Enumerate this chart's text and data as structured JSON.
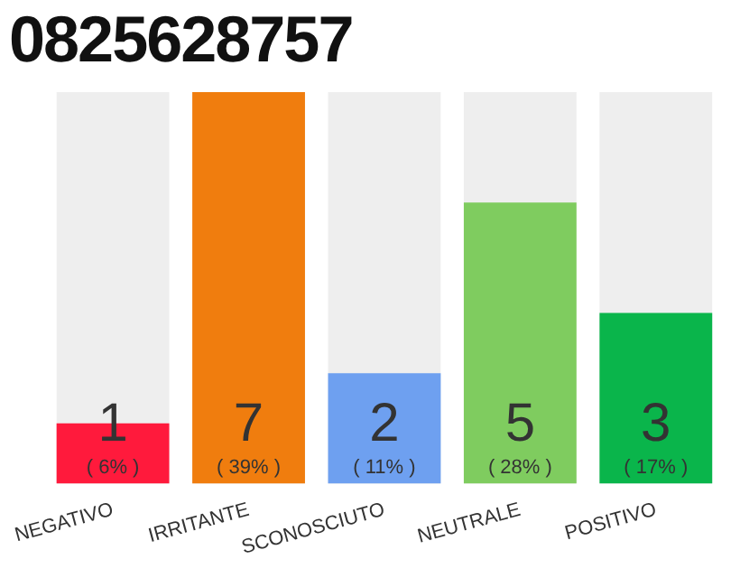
{
  "chart_data": {
    "type": "bar",
    "title": "0825628757",
    "categories": [
      "NEGATIVO",
      "IRRITANTE",
      "SCONOSCIUTO",
      "NEUTRALE",
      "POSITIVO"
    ],
    "values": [
      6,
      39,
      11,
      28,
      17
    ],
    "colors": [
      "#ff1a3c",
      "#f07d0e",
      "#6ea0f0",
      "#7fcc5f",
      "#0ab54b"
    ],
    "value_labels": [
      "( 6% )",
      "( 39% )",
      "( 11% )",
      "( 28% )",
      "( 17% )"
    ],
    "annotations": [
      {
        "text": "1",
        "x": "NEGATIVO"
      },
      {
        "text": "7",
        "x": "IRRITANTE"
      },
      {
        "text": "2",
        "x": "SCONOSCIUTO"
      },
      {
        "text": "5",
        "x": "NEUTRALE"
      },
      {
        "text": "3",
        "x": "POSITIVO"
      }
    ],
    "grid": false,
    "legend": false
  }
}
